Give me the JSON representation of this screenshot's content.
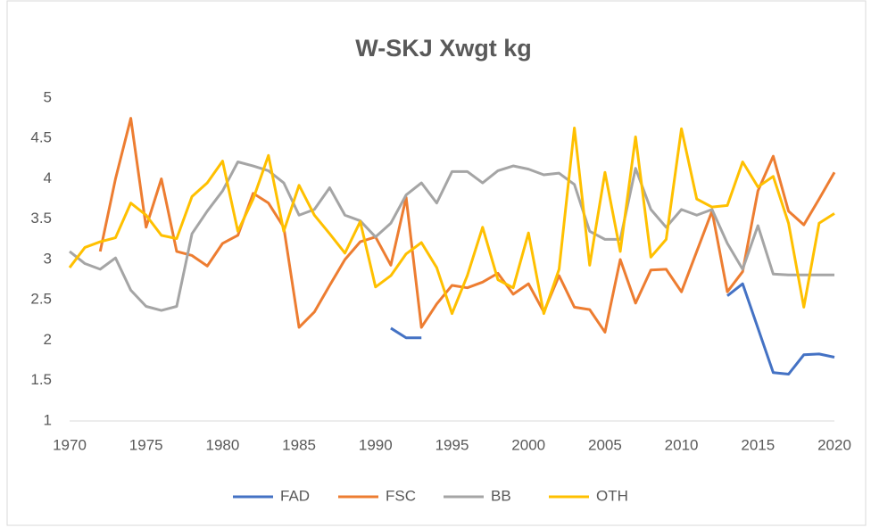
{
  "chart_data": {
    "type": "line",
    "title": "W-SKJ Xwgt kg",
    "x": [
      1970,
      1971,
      1972,
      1973,
      1974,
      1975,
      1976,
      1977,
      1978,
      1979,
      1980,
      1981,
      1982,
      1983,
      1984,
      1985,
      1986,
      1987,
      1988,
      1989,
      1990,
      1991,
      1992,
      1993,
      1994,
      1995,
      1996,
      1997,
      1998,
      1999,
      2000,
      2001,
      2002,
      2003,
      2004,
      2005,
      2006,
      2007,
      2008,
      2009,
      2010,
      2011,
      2012,
      2013,
      2014,
      2015,
      2016,
      2017,
      2018,
      2019,
      2020
    ],
    "xlim": [
      1970,
      2020
    ],
    "xticks": [
      1970,
      1975,
      1980,
      1985,
      1990,
      1995,
      2000,
      2005,
      2010,
      2015,
      2020
    ],
    "ylim": [
      1,
      5
    ],
    "yticks": [
      1,
      1.5,
      2,
      2.5,
      3,
      3.5,
      4,
      4.5,
      5
    ],
    "legend": "bottom",
    "series": [
      {
        "name": "FAD",
        "color": "#4472c4",
        "values": [
          null,
          null,
          null,
          null,
          null,
          null,
          null,
          null,
          null,
          null,
          null,
          null,
          null,
          null,
          null,
          null,
          null,
          null,
          null,
          null,
          null,
          2.15,
          2.03,
          2.03,
          null,
          null,
          null,
          null,
          null,
          null,
          null,
          null,
          null,
          null,
          null,
          null,
          null,
          null,
          null,
          null,
          null,
          null,
          null,
          2.55,
          2.7,
          2.15,
          1.6,
          1.58,
          1.82,
          1.83,
          1.79
        ]
      },
      {
        "name": "FSC",
        "color": "#ed7d31",
        "values": [
          null,
          null,
          3.1,
          4.0,
          4.75,
          3.4,
          4.0,
          3.1,
          3.05,
          2.92,
          3.2,
          3.3,
          3.82,
          3.7,
          3.4,
          2.16,
          2.35,
          2.68,
          3.0,
          3.22,
          3.28,
          2.93,
          3.77,
          2.16,
          2.45,
          2.68,
          2.65,
          2.72,
          2.83,
          2.57,
          2.7,
          2.35,
          2.8,
          2.41,
          2.38,
          2.1,
          3.0,
          2.46,
          2.87,
          2.88,
          2.6,
          3.1,
          3.6,
          2.6,
          2.85,
          3.85,
          4.28,
          3.6,
          3.43,
          3.75,
          4.08
        ]
      },
      {
        "name": "BB",
        "color": "#a5a5a5",
        "values": [
          3.1,
          2.95,
          2.88,
          3.02,
          2.62,
          2.42,
          2.37,
          2.42,
          3.32,
          3.6,
          3.85,
          4.21,
          4.16,
          4.1,
          3.95,
          3.55,
          3.62,
          3.89,
          3.55,
          3.48,
          3.28,
          3.45,
          3.8,
          3.95,
          3.7,
          4.09,
          4.09,
          3.95,
          4.1,
          4.16,
          4.12,
          4.05,
          4.07,
          3.93,
          3.35,
          3.25,
          3.25,
          4.13,
          3.62,
          3.4,
          3.62,
          3.55,
          3.62,
          3.2,
          2.88,
          3.42,
          2.82,
          2.81,
          2.81,
          2.81,
          2.81
        ]
      },
      {
        "name": "OTH",
        "color": "#ffc000",
        "values": [
          2.9,
          3.15,
          3.22,
          3.27,
          3.7,
          3.55,
          3.3,
          3.26,
          3.78,
          3.95,
          4.22,
          3.35,
          3.75,
          4.29,
          3.35,
          3.92,
          3.55,
          3.32,
          3.08,
          3.47,
          2.66,
          2.8,
          3.07,
          3.21,
          2.9,
          2.33,
          2.8,
          3.4,
          2.75,
          2.65,
          3.33,
          2.33,
          2.88,
          4.63,
          2.93,
          4.08,
          3.1,
          4.52,
          3.03,
          3.25,
          4.62,
          3.75,
          3.65,
          3.67,
          4.21,
          3.9,
          4.03,
          3.45,
          2.41,
          3.45,
          3.57
        ]
      }
    ]
  }
}
